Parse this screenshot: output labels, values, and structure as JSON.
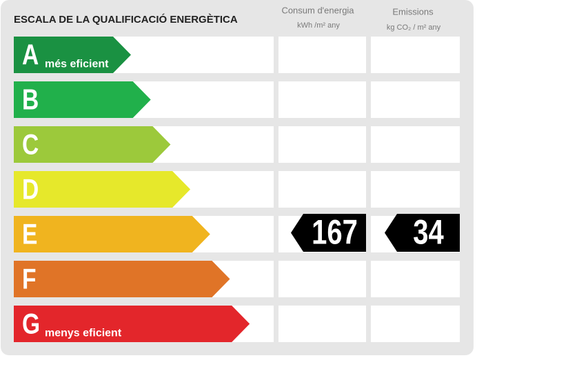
{
  "title": "ESCALA DE LA QUALIFICACIÓ ENERGÈTICA",
  "columns": [
    {
      "label": "Consum d'energia",
      "unit": "kWh /m² any"
    },
    {
      "label": "Emissions",
      "unit": "kg CO₂ / m² any"
    }
  ],
  "classes": [
    {
      "letter": "A",
      "label": "més eficient",
      "color": "#1a9142"
    },
    {
      "letter": "B",
      "color": "#21b04b"
    },
    {
      "letter": "C",
      "color": "#9cc93b"
    },
    {
      "letter": "D",
      "color": "#e6e82b"
    },
    {
      "letter": "E",
      "color": "#f0b41f"
    },
    {
      "letter": "F",
      "color": "#e07427"
    },
    {
      "letter": "G",
      "label": "menys eficient",
      "color": "#e3262b"
    }
  ],
  "ratings": [
    {
      "class": "E",
      "value": 167
    },
    {
      "class": "E",
      "value": 34
    }
  ]
}
